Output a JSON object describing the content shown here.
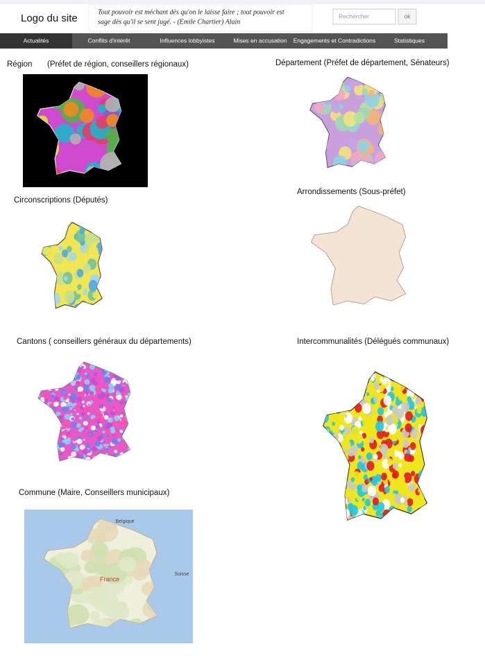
{
  "header": {
    "logo": "Logo du site",
    "quote": [
      "Tout pouvoir est méchant dès qu'on le laisse faire ; tout pouvoir est",
      "sage dès qu'il se sent jugé. - (Emile Chartier) Alain"
    ],
    "search_placeholder": "Rechercher",
    "search_button": "ok"
  },
  "nav": [
    "Actualités",
    "Conflits d'intérêt",
    "Influences lobbyistes",
    "Mises en accusation",
    "Engagements et Contradictions",
    "Statistiques"
  ],
  "sections": [
    {
      "label": "Région",
      "note": "(Préfet de région, conseillers régionaux)"
    },
    {
      "label": "Département  (Préfet de département, Sénateurs)"
    },
    {
      "label": "Circonscriptions (Députés)"
    },
    {
      "label": "Arrondissements (Sous-préfet)"
    },
    {
      "label": "Cantons ( conseillers généraux du départements)"
    },
    {
      "label": "Intercommunalités (Délégués communaux)"
    },
    {
      "label": "Commune (Maire, Conseillers municipaux)",
      "map_labels": [
        "France",
        "Belgique",
        "Suisse"
      ]
    }
  ]
}
